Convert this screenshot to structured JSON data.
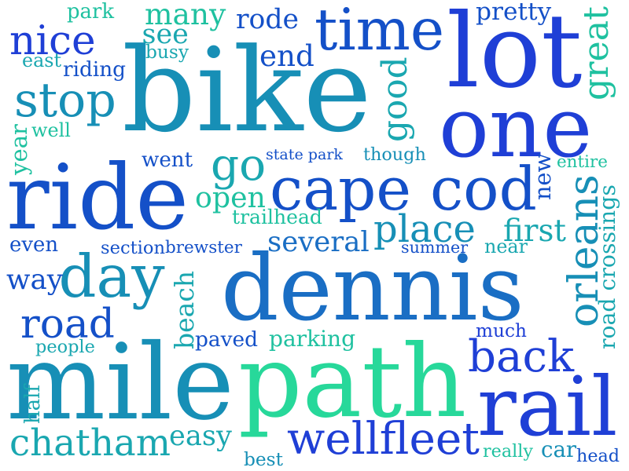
{
  "palette": {
    "blue": "#1f3fd6",
    "royal": "#1450c8",
    "azure": "#1a6ec4",
    "teal": "#178fb6",
    "cyan": "#1aa7b0",
    "sea": "#1fc1a0",
    "mint": "#27d89a"
  },
  "words": [
    {
      "text": "dennis",
      "color": "azure"
    },
    {
      "text": "path",
      "color": "mint"
    },
    {
      "text": "bike",
      "color": "teal"
    },
    {
      "text": "ride",
      "color": "royal"
    },
    {
      "text": "mile",
      "color": "teal"
    },
    {
      "text": "lot",
      "color": "blue"
    },
    {
      "text": "one",
      "color": "blue"
    },
    {
      "text": "rail",
      "color": "blue"
    },
    {
      "text": "time",
      "color": "royal"
    },
    {
      "text": "cape cod",
      "color": "royal"
    },
    {
      "text": "wellfleet",
      "color": "blue"
    },
    {
      "text": "day",
      "color": "teal"
    },
    {
      "text": "back",
      "color": "blue"
    },
    {
      "text": "place",
      "color": "teal"
    },
    {
      "text": "stop",
      "color": "teal"
    },
    {
      "text": "road",
      "color": "royal"
    },
    {
      "text": "chatham",
      "color": "cyan"
    },
    {
      "text": "nice",
      "color": "blue"
    },
    {
      "text": "orleans",
      "color": "teal"
    },
    {
      "text": "great",
      "color": "sea"
    },
    {
      "text": "good",
      "color": "cyan"
    },
    {
      "text": "several",
      "color": "azure"
    },
    {
      "text": "first",
      "color": "cyan"
    },
    {
      "text": "go",
      "color": "cyan"
    },
    {
      "text": "beach",
      "color": "cyan"
    },
    {
      "text": "easy",
      "color": "cyan"
    },
    {
      "text": "many",
      "color": "sea"
    },
    {
      "text": "end",
      "color": "royal"
    },
    {
      "text": "open",
      "color": "sea"
    },
    {
      "text": "rode",
      "color": "royal"
    },
    {
      "text": "car",
      "color": "teal"
    },
    {
      "text": "way",
      "color": "royal"
    },
    {
      "text": "parking",
      "color": "sea"
    },
    {
      "text": "see",
      "color": "cyan"
    },
    {
      "text": "road crossings",
      "color": "cyan"
    },
    {
      "text": "riding",
      "color": "royal"
    },
    {
      "text": "paved",
      "color": "royal"
    },
    {
      "text": "pretty",
      "color": "royal"
    },
    {
      "text": "trailhead",
      "color": "sea"
    },
    {
      "text": "much",
      "color": "blue"
    },
    {
      "text": "head",
      "color": "royal"
    },
    {
      "text": "went",
      "color": "royal"
    },
    {
      "text": "state park",
      "color": "royal"
    },
    {
      "text": "though",
      "color": "teal"
    },
    {
      "text": "entire",
      "color": "sea"
    },
    {
      "text": "new",
      "color": "royal"
    },
    {
      "text": "year",
      "color": "sea"
    },
    {
      "text": "well",
      "color": "sea"
    },
    {
      "text": "park",
      "color": "sea"
    },
    {
      "text": "busy",
      "color": "cyan"
    },
    {
      "text": "east",
      "color": "cyan"
    },
    {
      "text": "even",
      "color": "royal"
    },
    {
      "text": "section",
      "color": "royal"
    },
    {
      "text": "brewster",
      "color": "royal"
    },
    {
      "text": "summer",
      "color": "royal"
    },
    {
      "text": "near",
      "color": "cyan"
    },
    {
      "text": "people",
      "color": "cyan"
    },
    {
      "text": "half",
      "color": "cyan"
    },
    {
      "text": "best",
      "color": "teal"
    },
    {
      "text": "really",
      "color": "sea"
    }
  ]
}
